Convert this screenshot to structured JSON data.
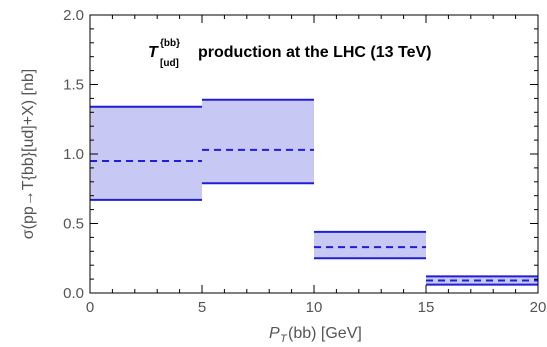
{
  "chart_data": {
    "type": "area",
    "title": {
      "symbol": "T",
      "superscript": "{bb}",
      "subscript": "[ud]",
      "text": " production at the LHC (13 TeV)"
    },
    "xlabel": {
      "symbol": "P",
      "subscript": "T",
      "text": "(bb) [GeV]"
    },
    "ylabel": "σ(pp→T{bb}[ud]+X) [nb]",
    "xlim": [
      0,
      20
    ],
    "ylim": [
      0,
      2.0
    ],
    "xticks": [
      0,
      5,
      10,
      15,
      20
    ],
    "yticks": [
      0.0,
      0.5,
      1.0,
      1.5,
      2.0
    ],
    "ytick_labels": [
      "0.0",
      "0.5",
      "1.0",
      "1.5",
      "2.0"
    ],
    "grid": false,
    "colors": {
      "band": "#c8c8f5",
      "line": "#1f1fd1",
      "frame": "#000000"
    },
    "bins": [
      {
        "x": [
          0,
          5
        ],
        "central": 0.95,
        "lower": 0.67,
        "upper": 1.34
      },
      {
        "x": [
          5,
          10
        ],
        "central": 1.03,
        "lower": 0.79,
        "upper": 1.39
      },
      {
        "x": [
          10,
          15
        ],
        "central": 0.33,
        "lower": 0.25,
        "upper": 0.44
      },
      {
        "x": [
          15,
          20
        ],
        "central": 0.09,
        "lower": 0.06,
        "upper": 0.12
      }
    ]
  }
}
